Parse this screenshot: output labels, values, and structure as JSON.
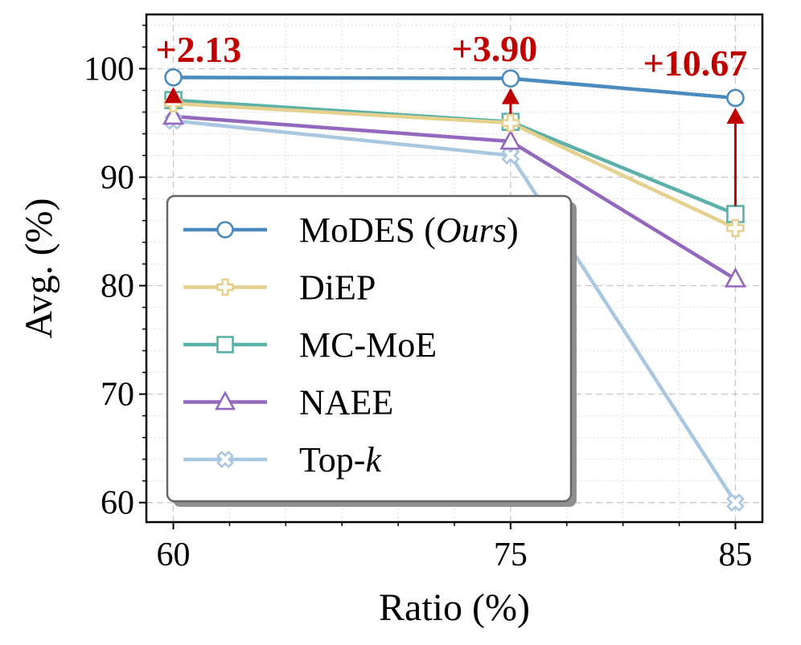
{
  "chart_data": {
    "type": "line",
    "title": "",
    "xlabel": "Ratio (%)",
    "ylabel": "Avg. (%)",
    "x": [
      60,
      75,
      85
    ],
    "x_ticks": [
      "60",
      "75",
      "85"
    ],
    "xlim": [
      58.8,
      86.2
    ],
    "ylim": [
      58.2,
      105
    ],
    "y_ticks": [
      "60",
      "70",
      "80",
      "90",
      "100"
    ],
    "grid": true,
    "legend_position": "lower-left",
    "series": [
      {
        "name_main": "MoDES (",
        "name_italic": "Ours",
        "name_tail": ")",
        "values": [
          99.2,
          99.1,
          97.3
        ],
        "color": "#4a8bbf",
        "marker": "circle"
      },
      {
        "name_main": "DiEP",
        "name_italic": "",
        "name_tail": "",
        "values": [
          96.8,
          95.0,
          85.3
        ],
        "color": "#e5d08d",
        "marker": "plus"
      },
      {
        "name_main": "MC-MoE",
        "name_italic": "",
        "name_tail": "",
        "values": [
          97.1,
          95.1,
          86.6
        ],
        "color": "#5bb1a8",
        "marker": "square"
      },
      {
        "name_main": "NAEE",
        "name_italic": "",
        "name_tail": "",
        "values": [
          95.6,
          93.3,
          80.6
        ],
        "color": "#9368bd",
        "marker": "triangle"
      },
      {
        "name_main": "Top-",
        "name_italic": "k",
        "name_tail": "",
        "values": [
          95.2,
          92.0,
          60.0
        ],
        "color": "#a9c7e0",
        "marker": "x"
      }
    ],
    "annotations": [
      {
        "text": "+2.13",
        "x": 60,
        "from": 97.1,
        "to": 99.2
      },
      {
        "text": "+3.90",
        "x": 75,
        "from": 95.1,
        "to": 99.1
      },
      {
        "text": "+10.67",
        "x": 85,
        "from": 86.6,
        "to": 97.3
      }
    ],
    "annotation_color": "#c00000"
  }
}
